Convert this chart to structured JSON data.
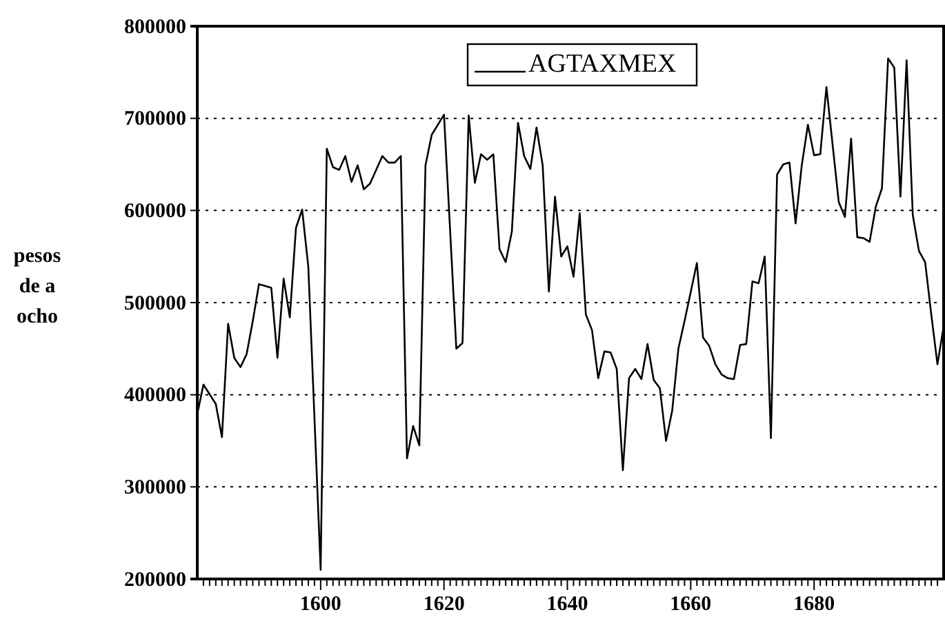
{
  "chart_data": {
    "type": "line",
    "ylabel": "pesos de a ocho",
    "legend": "top",
    "grid": "y",
    "marker": "none",
    "line_style": "solid",
    "xlim": [
      1580,
      1701
    ],
    "ylim": [
      200000,
      800000
    ],
    "yticks": [
      200000,
      300000,
      400000,
      500000,
      600000,
      700000,
      800000
    ],
    "xticks": [
      {
        "value": 1581,
        "label": null
      },
      {
        "value": 1582,
        "label": null
      },
      {
        "value": 1583,
        "label": null
      },
      {
        "value": 1584,
        "label": null
      },
      {
        "value": 1585,
        "label": null
      },
      {
        "value": 1586,
        "label": null
      },
      {
        "value": 1587,
        "label": null
      },
      {
        "value": 1588,
        "label": null
      },
      {
        "value": 1589,
        "label": null
      },
      {
        "value": 1590,
        "label": null
      },
      {
        "value": 1591,
        "label": null
      },
      {
        "value": 1592,
        "label": null
      },
      {
        "value": 1593,
        "label": null
      },
      {
        "value": 1594,
        "label": null
      },
      {
        "value": 1595,
        "label": null
      },
      {
        "value": 1596,
        "label": null
      },
      {
        "value": 1597,
        "label": null
      },
      {
        "value": 1598,
        "label": null
      },
      {
        "value": 1599,
        "label": null
      },
      1600,
      {
        "value": 1601,
        "label": null
      },
      {
        "value": 1602,
        "label": null
      },
      {
        "value": 1603,
        "label": null
      },
      {
        "value": 1604,
        "label": null
      },
      {
        "value": 1605,
        "label": null
      },
      {
        "value": 1606,
        "label": null
      },
      {
        "value": 1607,
        "label": null
      },
      {
        "value": 1608,
        "label": null
      },
      {
        "value": 1609,
        "label": null
      },
      {
        "value": 1610,
        "label": null
      },
      {
        "value": 1611,
        "label": null
      },
      {
        "value": 1612,
        "label": null
      },
      {
        "value": 1613,
        "label": null
      },
      {
        "value": 1614,
        "label": null
      },
      {
        "value": 1615,
        "label": null
      },
      {
        "value": 1616,
        "label": null
      },
      {
        "value": 1617,
        "label": null
      },
      {
        "value": 1618,
        "label": null
      },
      {
        "value": 1619,
        "label": null
      },
      1620,
      {
        "value": 1621,
        "label": null
      },
      {
        "value": 1622,
        "label": null
      },
      {
        "value": 1623,
        "label": null
      },
      {
        "value": 1624,
        "label": null
      },
      {
        "value": 1625,
        "label": null
      },
      {
        "value": 1626,
        "label": null
      },
      {
        "value": 1627,
        "label": null
      },
      {
        "value": 1628,
        "label": null
      },
      {
        "value": 1629,
        "label": null
      },
      {
        "value": 1630,
        "label": null
      },
      {
        "value": 1631,
        "label": null
      },
      {
        "value": 1632,
        "label": null
      },
      {
        "value": 1633,
        "label": null
      },
      {
        "value": 1634,
        "label": null
      },
      {
        "value": 1635,
        "label": null
      },
      {
        "value": 1636,
        "label": null
      },
      {
        "value": 1637,
        "label": null
      },
      {
        "value": 1638,
        "label": null
      },
      {
        "value": 1639,
        "label": null
      },
      1640,
      {
        "value": 1641,
        "label": null
      },
      {
        "value": 1642,
        "label": null
      },
      {
        "value": 1643,
        "label": null
      },
      {
        "value": 1644,
        "label": null
      },
      {
        "value": 1645,
        "label": null
      },
      {
        "value": 1646,
        "label": null
      },
      {
        "value": 1647,
        "label": null
      },
      {
        "value": 1648,
        "label": null
      },
      {
        "value": 1649,
        "label": null
      },
      {
        "value": 1650,
        "label": null
      },
      {
        "value": 1651,
        "label": null
      },
      {
        "value": 1652,
        "label": null
      },
      {
        "value": 1653,
        "label": null
      },
      {
        "value": 1654,
        "label": null
      },
      {
        "value": 1655,
        "label": null
      },
      {
        "value": 1656,
        "label": null
      },
      {
        "value": 1657,
        "label": null
      },
      {
        "value": 1658,
        "label": null
      },
      {
        "value": 1659,
        "label": null
      },
      1660,
      {
        "value": 1661,
        "label": null
      },
      {
        "value": 1662,
        "label": null
      },
      {
        "value": 1663,
        "label": null
      },
      {
        "value": 1664,
        "label": null
      },
      {
        "value": 1665,
        "label": null
      },
      {
        "value": 1666,
        "label": null
      },
      {
        "value": 1667,
        "label": null
      },
      {
        "value": 1668,
        "label": null
      },
      {
        "value": 1669,
        "label": null
      },
      {
        "value": 1670,
        "label": null
      },
      {
        "value": 1671,
        "label": null
      },
      {
        "value": 1672,
        "label": null
      },
      {
        "value": 1673,
        "label": null
      },
      {
        "value": 1674,
        "label": null
      },
      {
        "value": 1675,
        "label": null
      },
      {
        "value": 1676,
        "label": null
      },
      {
        "value": 1677,
        "label": null
      },
      {
        "value": 1678,
        "label": null
      },
      {
        "value": 1679,
        "label": null
      },
      1680,
      {
        "value": 1681,
        "label": null
      },
      {
        "value": 1682,
        "label": null
      },
      {
        "value": 1683,
        "label": null
      },
      {
        "value": 1684,
        "label": null
      },
      {
        "value": 1685,
        "label": null
      },
      {
        "value": 1686,
        "label": null
      },
      {
        "value": 1687,
        "label": null
      },
      {
        "value": 1688,
        "label": null
      },
      {
        "value": 1689,
        "label": null
      },
      {
        "value": 1690,
        "label": null
      },
      {
        "value": 1691,
        "label": null
      },
      {
        "value": 1692,
        "label": null
      },
      {
        "value": 1693,
        "label": null
      },
      {
        "value": 1694,
        "label": null
      },
      {
        "value": 1695,
        "label": null
      },
      {
        "value": 1696,
        "label": null
      },
      {
        "value": 1697,
        "label": null
      },
      {
        "value": 1698,
        "label": null
      },
      {
        "value": 1699,
        "label": null
      },
      {
        "value": 1700,
        "label": null
      }
    ],
    "series": [
      {
        "name": "AGTAXMEX",
        "color": "#000000",
        "x": [
          1580,
          1581,
          1583,
          1584,
          1585,
          1586,
          1587,
          1588,
          1589,
          1590,
          1592,
          1593,
          1594,
          1595,
          1596,
          1597,
          1598,
          1600,
          1601,
          1602,
          1603,
          1604,
          1605,
          1606,
          1607,
          1608,
          1610,
          1611,
          1612,
          1613,
          1614,
          1615,
          1616,
          1617,
          1618,
          1620,
          1622,
          1623,
          1624,
          1625,
          1626,
          1627,
          1628,
          1629,
          1630,
          1631,
          1632,
          1633,
          1634,
          1635,
          1636,
          1637,
          1638,
          1639,
          1640,
          1641,
          1642,
          1643,
          1644,
          1645,
          1646,
          1647,
          1648,
          1649,
          1650,
          1651,
          1652,
          1653,
          1654,
          1655,
          1656,
          1657,
          1658,
          1659,
          1661,
          1662,
          1663,
          1664,
          1665,
          1666,
          1667,
          1668,
          1669,
          1670,
          1671,
          1672,
          1673,
          1674,
          1675,
          1676,
          1677,
          1678,
          1679,
          1680,
          1681,
          1682,
          1684,
          1685,
          1686,
          1687,
          1688,
          1689,
          1690,
          1691,
          1692,
          1693,
          1694,
          1695,
          1696,
          1697,
          1698,
          1699,
          1700,
          1701
        ],
        "values": [
          379000,
          411000,
          390000,
          354000,
          477000,
          440000,
          430000,
          444000,
          480000,
          520000,
          516000,
          440000,
          526000,
          484000,
          581000,
          601000,
          539000,
          210000,
          667000,
          647000,
          644000,
          659000,
          631000,
          649000,
          623000,
          629000,
          659000,
          652000,
          652000,
          659000,
          331000,
          366000,
          345000,
          649000,
          682000,
          704000,
          450000,
          456000,
          703000,
          630000,
          661000,
          655000,
          661000,
          558000,
          544000,
          577000,
          695000,
          659000,
          645000,
          690000,
          649000,
          512000,
          615000,
          550000,
          561000,
          528000,
          597000,
          487000,
          470000,
          418000,
          447000,
          446000,
          428000,
          318000,
          418000,
          428000,
          417000,
          455000,
          416000,
          407000,
          350000,
          383000,
          450000,
          480000,
          543000,
          462000,
          453000,
          433000,
          422000,
          418000,
          417000,
          454000,
          455000,
          523000,
          521000,
          550000,
          353000,
          639000,
          650000,
          652000,
          586000,
          649000,
          693000,
          660000,
          661000,
          734000,
          609000,
          593000,
          678000,
          571000,
          570000,
          566000,
          604000,
          624000,
          765000,
          755000,
          615000,
          763000,
          595000,
          556000,
          544000,
          487000,
          433000,
          474000
        ]
      }
    ]
  }
}
